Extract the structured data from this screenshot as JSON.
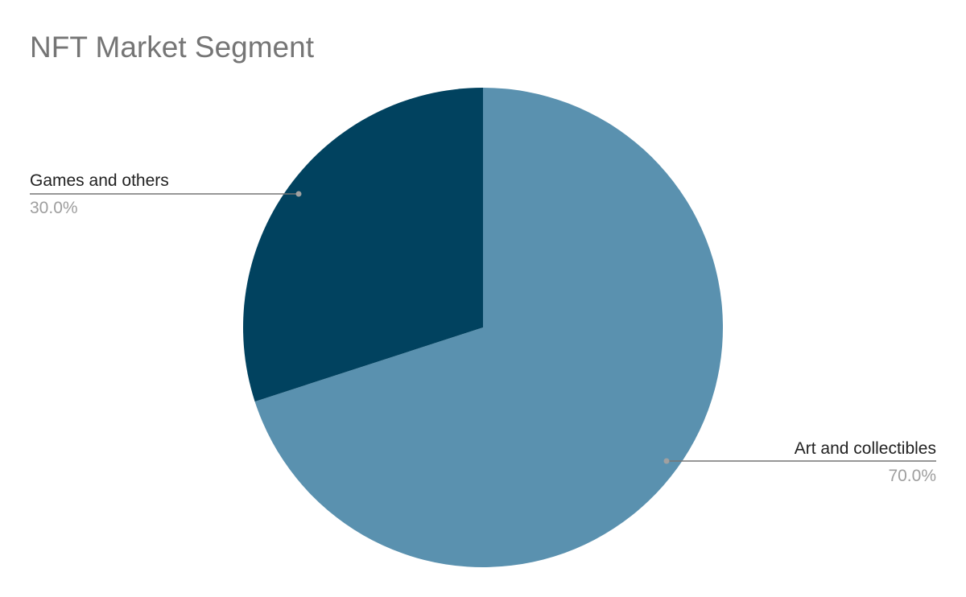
{
  "chart_data": {
    "type": "pie",
    "title": "NFT Market Segment",
    "slices": [
      {
        "label": "Art and collectibles",
        "value": 70.0,
        "percent_label": "70.0%",
        "color": "#5a91af"
      },
      {
        "label": "Games and others",
        "value": 30.0,
        "percent_label": "30.0%",
        "color": "#01425f"
      }
    ],
    "start_angle": "12 o'clock",
    "direction": "clockwise",
    "legend": "none (leader-line labels)",
    "label_line_color": "#757575",
    "label_dot_color": "#a0a0a0"
  }
}
